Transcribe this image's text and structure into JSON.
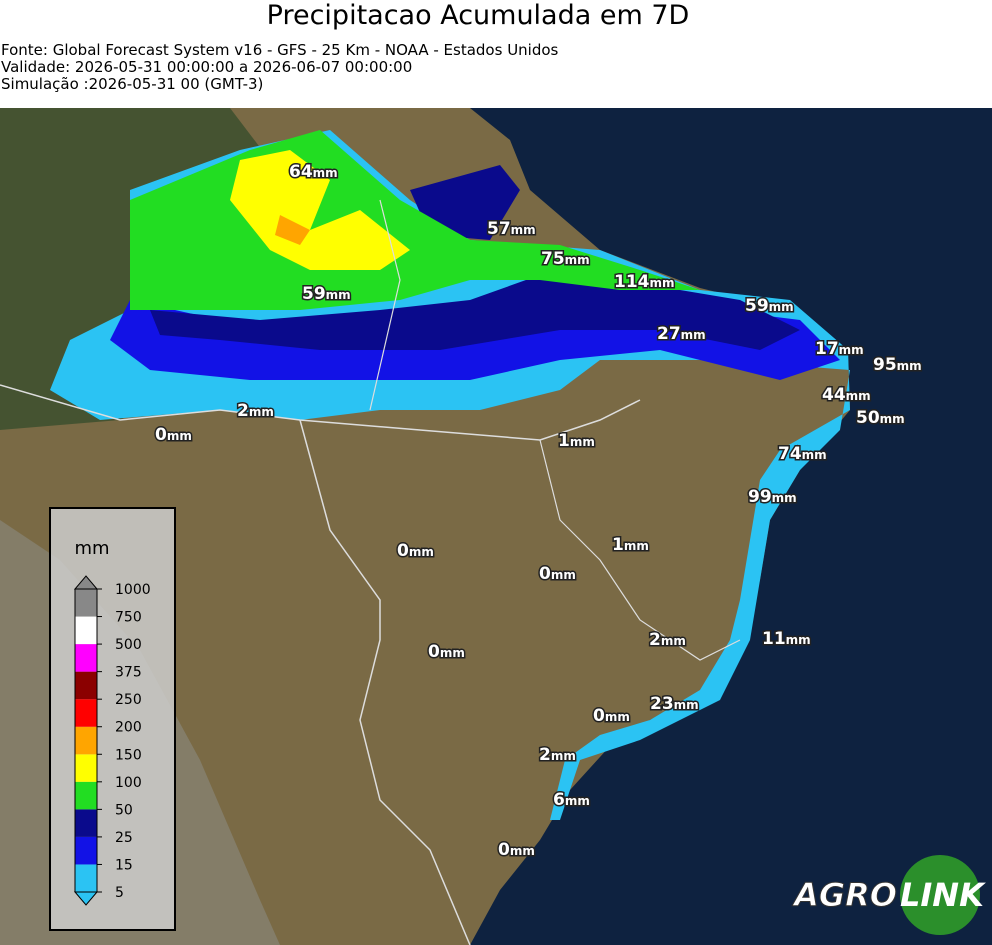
{
  "header": {
    "title": "Precipitacao Acumulada em 7D",
    "lines": [
      "Fonte: Global Forecast System v16 - GFS - 25 Km - NOAA - Estados Unidos",
      "Validade: 2026-05-31 00:00:00 a 2026-06-07 00:00:00",
      "Simulação :2026-05-31 00 (GMT-3)"
    ]
  },
  "map": {
    "unit": "mm",
    "labels": [
      64,
      57,
      75,
      114,
      59,
      59,
      27,
      17,
      95,
      44,
      2,
      50,
      0,
      1,
      74,
      99,
      0,
      1,
      0,
      2,
      11,
      0,
      23,
      0,
      2,
      6,
      0
    ]
  },
  "legend": {
    "title": "mm",
    "ticks": [
      5,
      15,
      25,
      50,
      100,
      150,
      200,
      250,
      375,
      500,
      750,
      1000
    ],
    "colors": [
      "#2bc3f3",
      "#1212e6",
      "#0a0a8c",
      "#22dd22",
      "#ffff00",
      "#ffa500",
      "#ff0000",
      "#8b0000",
      "#ff00ff",
      "#ffffff",
      "#888888"
    ]
  },
  "logo": {
    "left": "AGRO",
    "right": "LINK"
  }
}
